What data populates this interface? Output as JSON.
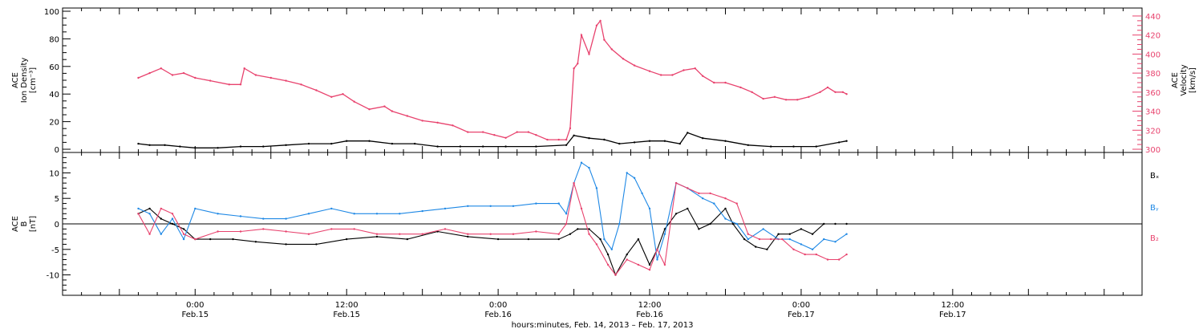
{
  "chart_data": [
    {
      "type": "scatter",
      "panel": "top",
      "ylabel_left": [
        "ACE",
        "Ion Density",
        "[cm⁻³]"
      ],
      "ylabel_right": [
        "ACE",
        "Velocity",
        "[km/s]"
      ],
      "ylim_left": [
        0,
        100
      ],
      "ylim_right": [
        300,
        445
      ],
      "yticks_left": [
        "0",
        "20",
        "40",
        "60",
        "80",
        "100"
      ],
      "yticks_right": [
        "300",
        "320",
        "340",
        "360",
        "380",
        "400",
        "420",
        "440"
      ],
      "series": [
        {
          "axis": "right",
          "color": "#e8436e",
          "points": [
            [
              -0.75,
              375
            ],
            [
              -0.6,
              380
            ],
            [
              -0.45,
              385
            ],
            [
              -0.3,
              378
            ],
            [
              -0.15,
              380
            ],
            [
              0,
              375
            ],
            [
              0.2,
              372
            ],
            [
              0.45,
              368
            ],
            [
              0.6,
              368
            ],
            [
              0.65,
              385
            ],
            [
              0.8,
              378
            ],
            [
              1.0,
              375
            ],
            [
              1.2,
              372
            ],
            [
              1.4,
              368
            ],
            [
              1.6,
              362
            ],
            [
              1.8,
              355
            ],
            [
              1.95,
              358
            ],
            [
              2.1,
              350
            ],
            [
              2.3,
              342
            ],
            [
              2.5,
              345
            ],
            [
              2.6,
              340
            ],
            [
              2.8,
              335
            ],
            [
              3.0,
              330
            ],
            [
              3.2,
              328
            ],
            [
              3.4,
              325
            ],
            [
              3.6,
              318
            ],
            [
              3.8,
              318
            ],
            [
              3.95,
              315
            ],
            [
              4.1,
              312
            ],
            [
              4.25,
              318
            ],
            [
              4.4,
              318
            ],
            [
              4.5,
              315
            ],
            [
              4.65,
              310
            ],
            [
              4.8,
              310
            ],
            [
              4.9,
              310
            ],
            [
              4.95,
              322
            ],
            [
              5.0,
              385
            ],
            [
              5.05,
              390
            ],
            [
              5.1,
              420
            ],
            [
              5.2,
              400
            ],
            [
              5.3,
              430
            ],
            [
              5.35,
              435
            ],
            [
              5.4,
              415
            ],
            [
              5.5,
              405
            ],
            [
              5.65,
              395
            ],
            [
              5.8,
              388
            ],
            [
              6.0,
              382
            ],
            [
              6.15,
              378
            ],
            [
              6.3,
              378
            ],
            [
              6.45,
              383
            ],
            [
              6.6,
              385
            ],
            [
              6.7,
              377
            ],
            [
              6.85,
              370
            ],
            [
              7.0,
              370
            ],
            [
              7.2,
              365
            ],
            [
              7.35,
              360
            ],
            [
              7.5,
              353
            ],
            [
              7.65,
              355
            ],
            [
              7.8,
              352
            ],
            [
              7.95,
              352
            ],
            [
              8.1,
              355
            ],
            [
              8.25,
              360
            ],
            [
              8.35,
              365
            ],
            [
              8.45,
              360
            ],
            [
              8.55,
              360
            ],
            [
              8.6,
              358
            ]
          ]
        },
        {
          "axis": "left",
          "color": "#000000",
          "points": [
            [
              -0.75,
              4
            ],
            [
              -0.6,
              3
            ],
            [
              -0.4,
              3
            ],
            [
              -0.2,
              2
            ],
            [
              0,
              1
            ],
            [
              0.3,
              1
            ],
            [
              0.6,
              2
            ],
            [
              0.9,
              2
            ],
            [
              1.2,
              3
            ],
            [
              1.5,
              4
            ],
            [
              1.8,
              4
            ],
            [
              2.0,
              6
            ],
            [
              2.3,
              6
            ],
            [
              2.6,
              4
            ],
            [
              2.9,
              4
            ],
            [
              3.2,
              2
            ],
            [
              3.5,
              2
            ],
            [
              3.8,
              2
            ],
            [
              4.1,
              2
            ],
            [
              4.5,
              2
            ],
            [
              4.9,
              3
            ],
            [
              5.0,
              10
            ],
            [
              5.2,
              8
            ],
            [
              5.4,
              7
            ],
            [
              5.6,
              4
            ],
            [
              5.8,
              5
            ],
            [
              6.0,
              6
            ],
            [
              6.2,
              6
            ],
            [
              6.4,
              4
            ],
            [
              6.5,
              12
            ],
            [
              6.7,
              8
            ],
            [
              7.0,
              6
            ],
            [
              7.3,
              3
            ],
            [
              7.6,
              2
            ],
            [
              7.9,
              2
            ],
            [
              8.2,
              2
            ],
            [
              8.5,
              5
            ],
            [
              8.6,
              6
            ]
          ]
        }
      ]
    },
    {
      "type": "scatter",
      "panel": "bottom",
      "ylabel_left": [
        "ACE",
        "B",
        "[nT]"
      ],
      "ylim": [
        -14,
        14
      ],
      "yticks": [
        "-10",
        "-5",
        "0",
        "5",
        "10"
      ],
      "legend": [
        {
          "name": "Bₓ",
          "color": "#000000"
        },
        {
          "name": "Bᵧ",
          "color": "#1e88e5"
        },
        {
          "name": "B₂",
          "color": "#e8436e"
        }
      ],
      "series": [
        {
          "name": "Bx",
          "color": "#000000",
          "points": [
            [
              -0.75,
              2
            ],
            [
              -0.6,
              3
            ],
            [
              -0.45,
              1
            ],
            [
              -0.3,
              0
            ],
            [
              -0.15,
              -1
            ],
            [
              0,
              -3
            ],
            [
              0.2,
              -3
            ],
            [
              0.5,
              -3
            ],
            [
              0.8,
              -3.5
            ],
            [
              1.2,
              -4
            ],
            [
              1.6,
              -4
            ],
            [
              2.0,
              -3
            ],
            [
              2.4,
              -2.5
            ],
            [
              2.8,
              -3
            ],
            [
              3.2,
              -1.5
            ],
            [
              3.6,
              -2.5
            ],
            [
              4.0,
              -3
            ],
            [
              4.4,
              -3
            ],
            [
              4.8,
              -3
            ],
            [
              4.95,
              -2
            ],
            [
              5.05,
              -1
            ],
            [
              5.2,
              -1
            ],
            [
              5.35,
              -3
            ],
            [
              5.45,
              -6
            ],
            [
              5.55,
              -10
            ],
            [
              5.7,
              -6
            ],
            [
              5.85,
              -3
            ],
            [
              6.0,
              -8
            ],
            [
              6.1,
              -5
            ],
            [
              6.2,
              -1
            ],
            [
              6.35,
              2
            ],
            [
              6.5,
              3
            ],
            [
              6.65,
              -1
            ],
            [
              6.8,
              0
            ],
            [
              7.0,
              3
            ],
            [
              7.1,
              0
            ],
            [
              7.25,
              -3
            ],
            [
              7.4,
              -4.5
            ],
            [
              7.55,
              -5
            ],
            [
              7.7,
              -2
            ],
            [
              7.85,
              -2
            ],
            [
              8.0,
              -1
            ],
            [
              8.15,
              -2
            ],
            [
              8.3,
              0
            ],
            [
              8.45,
              0
            ],
            [
              8.6,
              0
            ]
          ]
        },
        {
          "name": "By",
          "color": "#1e88e5",
          "points": [
            [
              -0.75,
              3
            ],
            [
              -0.6,
              2
            ],
            [
              -0.45,
              -2
            ],
            [
              -0.3,
              1
            ],
            [
              -0.15,
              -3
            ],
            [
              0,
              3
            ],
            [
              0.3,
              2
            ],
            [
              0.6,
              1.5
            ],
            [
              0.9,
              1
            ],
            [
              1.2,
              1
            ],
            [
              1.5,
              2
            ],
            [
              1.8,
              3
            ],
            [
              2.1,
              2
            ],
            [
              2.4,
              2
            ],
            [
              2.7,
              2
            ],
            [
              3.0,
              2.5
            ],
            [
              3.3,
              3
            ],
            [
              3.6,
              3.5
            ],
            [
              3.9,
              3.5
            ],
            [
              4.2,
              3.5
            ],
            [
              4.5,
              4
            ],
            [
              4.8,
              4
            ],
            [
              4.9,
              2
            ],
            [
              5.0,
              8
            ],
            [
              5.1,
              12
            ],
            [
              5.2,
              11
            ],
            [
              5.3,
              7
            ],
            [
              5.4,
              -3
            ],
            [
              5.5,
              -5
            ],
            [
              5.6,
              0
            ],
            [
              5.7,
              10
            ],
            [
              5.8,
              9
            ],
            [
              5.9,
              6
            ],
            [
              6.0,
              3
            ],
            [
              6.1,
              -7
            ],
            [
              6.2,
              -2
            ],
            [
              6.35,
              8
            ],
            [
              6.5,
              7
            ],
            [
              6.7,
              5
            ],
            [
              6.85,
              4
            ],
            [
              7.0,
              1
            ],
            [
              7.15,
              0
            ],
            [
              7.3,
              -3
            ],
            [
              7.5,
              -1
            ],
            [
              7.7,
              -3
            ],
            [
              7.85,
              -3
            ],
            [
              8.0,
              -4
            ],
            [
              8.15,
              -5
            ],
            [
              8.3,
              -3
            ],
            [
              8.45,
              -3.5
            ],
            [
              8.6,
              -2
            ]
          ]
        },
        {
          "name": "Bz",
          "color": "#e8436e",
          "points": [
            [
              -0.75,
              2
            ],
            [
              -0.6,
              -2
            ],
            [
              -0.45,
              3
            ],
            [
              -0.3,
              2
            ],
            [
              -0.15,
              -2
            ],
            [
              0,
              -3
            ],
            [
              0.3,
              -1.5
            ],
            [
              0.6,
              -1.5
            ],
            [
              0.9,
              -1
            ],
            [
              1.2,
              -1.5
            ],
            [
              1.5,
              -2
            ],
            [
              1.8,
              -1
            ],
            [
              2.1,
              -1
            ],
            [
              2.4,
              -2
            ],
            [
              2.7,
              -2
            ],
            [
              3.0,
              -2
            ],
            [
              3.3,
              -1
            ],
            [
              3.6,
              -2
            ],
            [
              3.9,
              -2
            ],
            [
              4.2,
              -2
            ],
            [
              4.5,
              -1.5
            ],
            [
              4.8,
              -2
            ],
            [
              4.9,
              0
            ],
            [
              5.0,
              8
            ],
            [
              5.1,
              3
            ],
            [
              5.2,
              -2
            ],
            [
              5.3,
              -4
            ],
            [
              5.45,
              -8
            ],
            [
              5.55,
              -10
            ],
            [
              5.7,
              -7
            ],
            [
              5.85,
              -8
            ],
            [
              6.0,
              -9
            ],
            [
              6.1,
              -5
            ],
            [
              6.2,
              -8
            ],
            [
              6.35,
              8
            ],
            [
              6.5,
              7
            ],
            [
              6.65,
              6
            ],
            [
              6.8,
              6
            ],
            [
              7.0,
              5
            ],
            [
              7.15,
              4
            ],
            [
              7.3,
              -2
            ],
            [
              7.45,
              -3
            ],
            [
              7.6,
              -3
            ],
            [
              7.75,
              -3
            ],
            [
              7.9,
              -5
            ],
            [
              8.05,
              -6
            ],
            [
              8.2,
              -6
            ],
            [
              8.35,
              -7
            ],
            [
              8.5,
              -7
            ],
            [
              8.6,
              -6
            ]
          ]
        }
      ]
    }
  ],
  "x_axis": {
    "ticks": [
      {
        "t": 0,
        "time": "0:00",
        "date": "Feb.15"
      },
      {
        "t": 2,
        "time": "12:00",
        "date": "Feb.15"
      },
      {
        "t": 4,
        "time": "0:00",
        "date": "Feb.16"
      },
      {
        "t": 6,
        "time": "12:00",
        "date": "Feb.16"
      },
      {
        "t": 8,
        "time": "0:00",
        "date": "Feb.17"
      },
      {
        "t": 10,
        "time": "12:00",
        "date": "Feb.17"
      }
    ],
    "label": "hours:minutes, Feb. 14, 2013 – Feb. 17, 2013",
    "range": [
      -1.75,
      12.5
    ]
  }
}
